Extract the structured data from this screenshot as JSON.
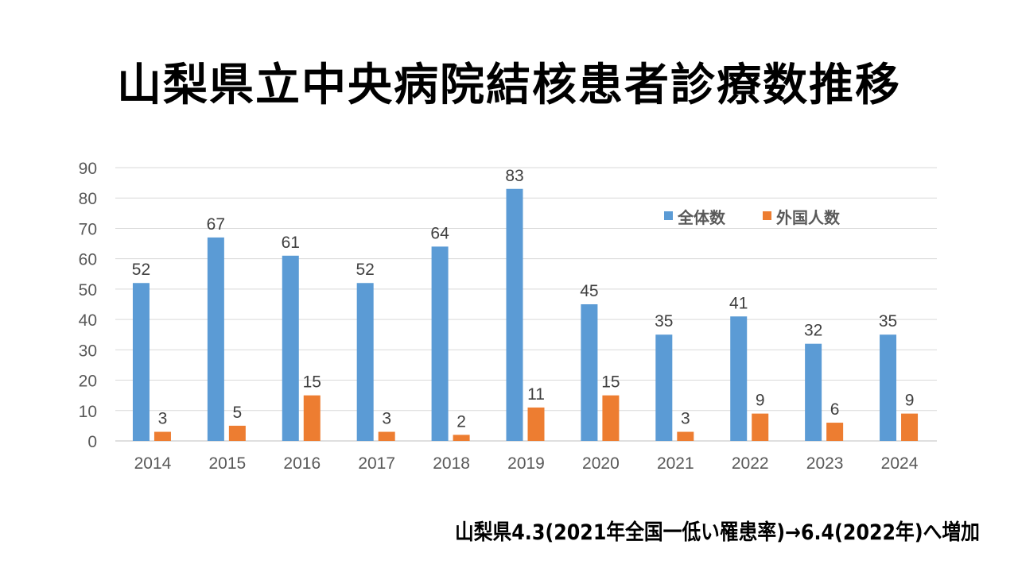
{
  "chart_data": {
    "type": "bar",
    "title": "山梨県立中央病院結核患者診療数推移",
    "categories": [
      "2014",
      "2015",
      "2016",
      "2017",
      "2018",
      "2019",
      "2020",
      "2021",
      "2022",
      "2023",
      "2024"
    ],
    "series": [
      {
        "name": "全体数",
        "color": "#5B9BD5",
        "values": [
          52,
          67,
          61,
          52,
          64,
          83,
          45,
          35,
          41,
          32,
          35
        ]
      },
      {
        "name": "外国人数",
        "color": "#ED7D31",
        "values": [
          3,
          5,
          15,
          3,
          2,
          11,
          15,
          3,
          9,
          6,
          9
        ]
      }
    ],
    "yticks": [
      "0",
      "10",
      "20",
      "30",
      "40",
      "50",
      "60",
      "70",
      "80",
      "90"
    ],
    "ylim": [
      0,
      90
    ],
    "grid": true,
    "legend_position": "top-right",
    "xlabel": "",
    "ylabel": "",
    "annotation": "山梨県4.3(2021年全国一低い罹患率)→6.4(2022年)へ増加"
  }
}
